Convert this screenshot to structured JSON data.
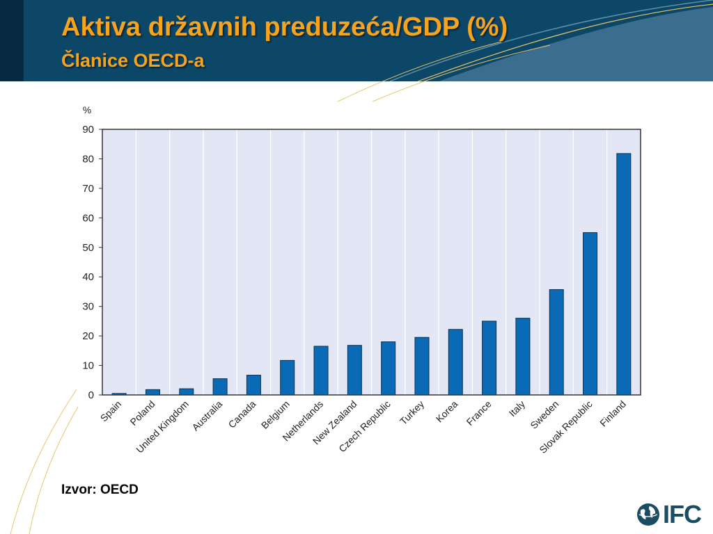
{
  "slide": {
    "title": "Aktiva državnih preduzeća/GDP (%)",
    "subtitle": "Članice OECD-a",
    "source": "Izvor: OECD",
    "logo_text": "IFC",
    "logo_icon": "globe-icon",
    "colors": {
      "header_bg": "#0d4768",
      "title": "#f6a41e",
      "bar": "#0a6ab6",
      "plot_bg": "#e3e7f5"
    }
  },
  "chart_data": {
    "type": "bar",
    "title": "",
    "xlabel": "",
    "ylabel": "%",
    "ylim": [
      0,
      90
    ],
    "yticks": [
      0,
      10,
      20,
      30,
      40,
      50,
      60,
      70,
      80,
      90
    ],
    "grid": "vertical",
    "categories": [
      "Spain",
      "Poland",
      "United Kingdom",
      "Australia",
      "Canada",
      "Belgium",
      "Netherlands",
      "New Zealand",
      "Czech Republic",
      "Turkey",
      "Korea",
      "France",
      "Italy",
      "Sweden",
      "Slovak Republic",
      "Finland"
    ],
    "values": [
      0.5,
      1.8,
      2.1,
      5.5,
      6.7,
      11.7,
      16.5,
      16.8,
      18,
      19.5,
      22.2,
      25,
      26,
      35.7,
      55,
      81.8
    ]
  }
}
